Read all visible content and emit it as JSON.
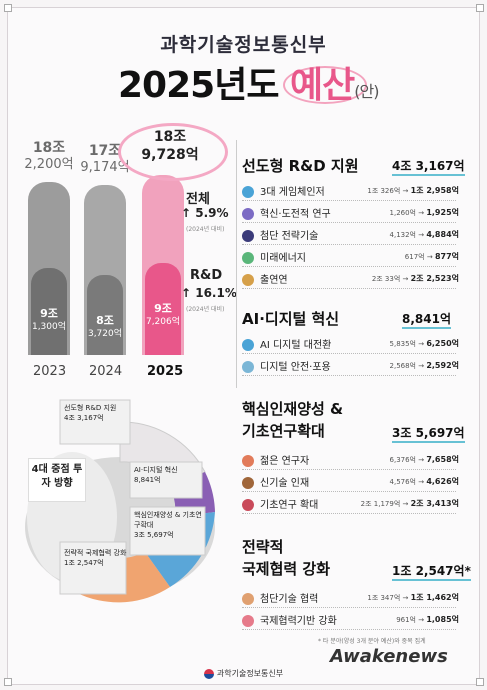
{
  "header": {
    "ministry": "과학기술정보통신부",
    "title_year": "2025년도",
    "title_budget": "예산",
    "title_draft": "(안)"
  },
  "chart_data": {
    "type": "bar",
    "categories": [
      "2023",
      "2024",
      "2025"
    ],
    "series": [
      {
        "values": [
          182200,
          179174,
          189728
        ],
        "labels": [
          "18조\n2,200억",
          "17조\n9,174억",
          "18조\n9,728억"
        ]
      },
      {
        "values": [
          91300,
          83720,
          97206
        ],
        "labels": [
          "9조\n1,300억",
          "8조\n3,720억",
          "9조\n7,206억"
        ]
      }
    ],
    "ylim": [
      0,
      200000
    ]
  },
  "growth": {
    "total_label": "전체",
    "total_pct": "5.9%",
    "total_note": "(2024년 대비)",
    "rd_label": "R&D",
    "rd_pct": "16.1%",
    "rd_note": "(2024년 대비)"
  },
  "donut": {
    "center": "4대 중점 투자 방향",
    "segments": [
      {
        "label": "선도형 R&D 지원",
        "amount": "4조 3,167억",
        "color": "#e9e6e8"
      },
      {
        "label": "AI·디지털 혁신",
        "amount": "8,841억",
        "color": "#8a5fb4"
      },
      {
        "label": "핵심인재양성 & 기초연구확대",
        "amount": "3조 5,697억",
        "color": "#5aa6d8"
      },
      {
        "label": "전략적 국제협력 강화",
        "amount": "1조 2,547억",
        "color": "#f0a470"
      }
    ]
  },
  "sections": [
    {
      "title": "선도형 R&D 지원",
      "total": "4조 3,167억",
      "items": [
        {
          "name": "3대 게임체인저",
          "from": "1조 326억",
          "to": "1조 2,958억",
          "icon": "gear-icon"
        },
        {
          "name": "혁신·도전적 연구",
          "from": "1,260억",
          "to": "1,925억",
          "icon": "bulb-icon"
        },
        {
          "name": "첨단 전략기술",
          "from": "4,132억",
          "to": "4,884억",
          "icon": "rocket-icon"
        },
        {
          "name": "미래에너지",
          "from": "617억",
          "to": "877억",
          "icon": "energy-icon"
        },
        {
          "name": "출연연",
          "from": "2조 33억",
          "to": "2조 2,523억",
          "icon": "researcher-icon"
        }
      ]
    },
    {
      "title": "AI·디지털 혁신",
      "total": "8,841억",
      "items": [
        {
          "name": "AI 디지털 대전환",
          "from": "5,835억",
          "to": "6,250억",
          "icon": "chat-icon"
        },
        {
          "name": "디지털 안전·포용",
          "from": "2,568억",
          "to": "2,592억",
          "icon": "shield-icon"
        }
      ]
    },
    {
      "title": "핵심인재양성 & 기초연구확대",
      "total": "3조 5,697억",
      "items": [
        {
          "name": "젊은 연구자",
          "from": "6,376억",
          "to": "7,658억",
          "icon": "person-icon"
        },
        {
          "name": "신기술 인재",
          "from": "4,576억",
          "to": "4,626억",
          "icon": "briefcase-icon"
        },
        {
          "name": "기초연구 확대",
          "from": "2조 1,179억",
          "to": "2조 3,413억",
          "icon": "book-icon"
        }
      ]
    },
    {
      "title": "전략적 국제협력 강화",
      "total": "1조 2,547억*",
      "items": [
        {
          "name": "첨단기술 협력",
          "from": "1조 347억",
          "to": "1조 1,462억",
          "icon": "handshake-icon"
        },
        {
          "name": "국제협력기반 강화",
          "from": "961억",
          "to": "1,085억",
          "icon": "heart-hand-icon"
        }
      ]
    }
  ],
  "footnote": "* 타 분야(양성 3개 분야 예산)와 중복 집계",
  "footer": "과학기술정보통신부",
  "watermark": "Awakenews",
  "colors": {
    "pink": "#e8578a",
    "gray_bar": "#9c9c9c",
    "teal": "#67c1d4"
  }
}
